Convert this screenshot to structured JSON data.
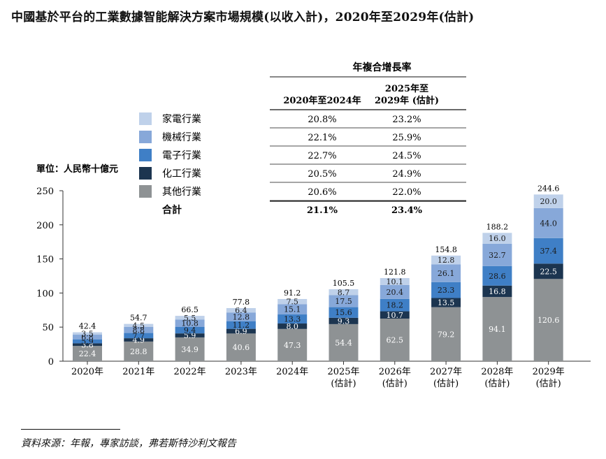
{
  "title": "中國基於平台的工業數據智能解決方案市場規模(以收入計)，2020年至2029年(估計)",
  "source": "資料來源：年報，專家訪談，弗若斯特沙利文報告",
  "chart_data": {
    "type": "bar",
    "stacked": true,
    "ylabel": "單位：人民幣十億元",
    "ylim": [
      0,
      250
    ],
    "yticks": [
      0,
      50,
      100,
      150,
      200,
      250
    ],
    "categories": [
      "2020年",
      "2021年",
      "2022年",
      "2023年",
      "2024年",
      "2025年\n(估計)",
      "2026年\n(估計)",
      "2027年\n(估計)",
      "2028年\n(估計)",
      "2029年\n(估計)"
    ],
    "totals": [
      42.4,
      54.7,
      66.5,
      77.8,
      91.2,
      105.5,
      121.8,
      154.8,
      188.2,
      244.6
    ],
    "series": [
      {
        "name": "其他行業",
        "color": "#8e9294",
        "values": [
          22.4,
          28.8,
          34.9,
          40.6,
          47.3,
          54.4,
          62.5,
          79.2,
          94.1,
          120.6
        ]
      },
      {
        "name": "化工行業",
        "color": "#1c3550",
        "values": [
          3.8,
          4.9,
          5.9,
          6.9,
          8.0,
          9.3,
          10.7,
          13.5,
          16.8,
          22.5
        ]
      },
      {
        "name": "電子行業",
        "color": "#3f7fc6",
        "values": [
          5.9,
          7.7,
          9.4,
          11.2,
          13.3,
          15.6,
          18.2,
          23.3,
          28.6,
          37.4
        ]
      },
      {
        "name": "機械行業",
        "color": "#87a8d9",
        "values": [
          6.8,
          8.8,
          10.8,
          12.8,
          15.1,
          17.5,
          20.4,
          26.1,
          32.7,
          44.0
        ]
      },
      {
        "name": "家電行業",
        "color": "#bfd1ea",
        "values": [
          3.5,
          4.5,
          5.5,
          6.4,
          7.5,
          8.7,
          10.1,
          12.8,
          16.0,
          20.0
        ]
      }
    ],
    "legend_order": [
      "家電行業",
      "機械行業",
      "電子行業",
      "化工行業",
      "其他行業"
    ],
    "cagr_table": {
      "header": "年複合增長率",
      "columns": [
        "2020年至2024年",
        "2025年至\n2029年 (估計)"
      ],
      "rows": [
        [
          "20.8%",
          "23.2%"
        ],
        [
          "22.1%",
          "25.9%"
        ],
        [
          "22.7%",
          "24.5%"
        ],
        [
          "20.5%",
          "24.9%"
        ],
        [
          "20.6%",
          "22.0%"
        ]
      ],
      "total_label": "合計",
      "total": [
        "21.1%",
        "23.4%"
      ]
    }
  }
}
